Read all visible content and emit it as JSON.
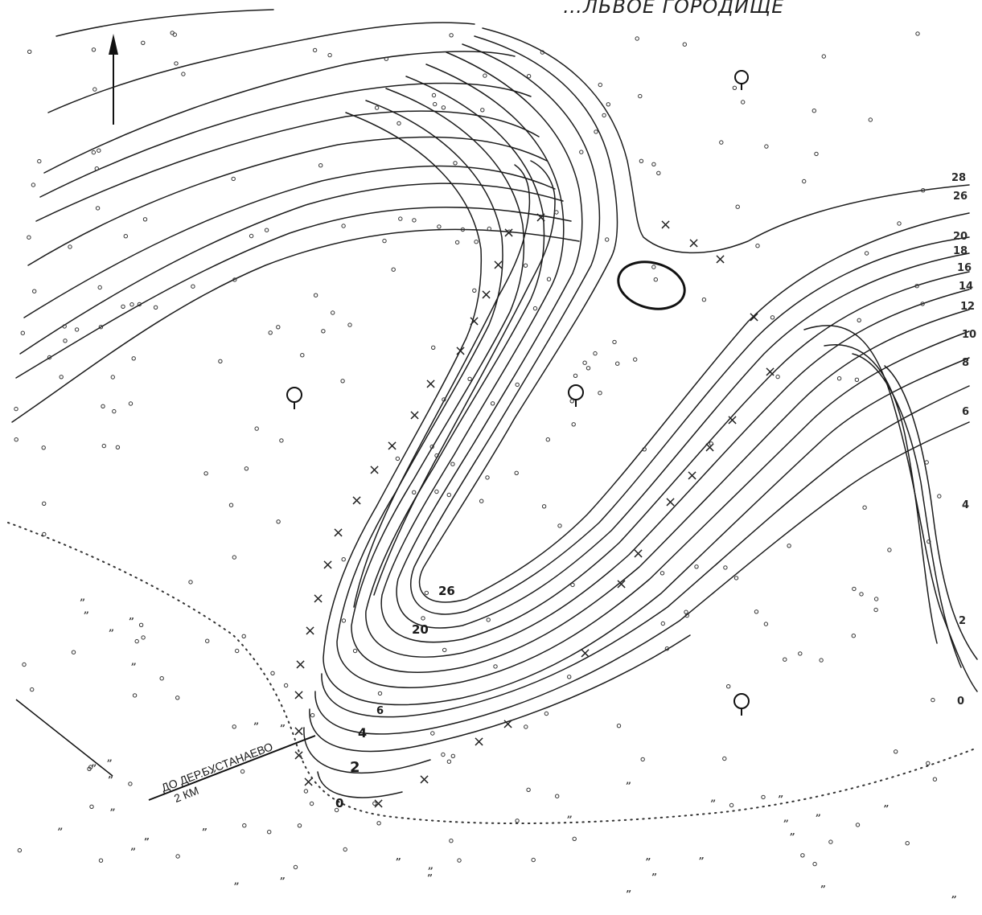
{
  "map": {
    "title": "…ЛЬВОЕ ГОРОДИЩЕ",
    "road_label_line1": "ДО ДЕР.БУСТАНАЕВО",
    "road_label_line2": "2 КМ",
    "contour_labels_east": [
      "28",
      "26",
      "20",
      "18",
      "16",
      "14",
      "12",
      "10",
      "8",
      "6",
      "4",
      "2",
      "0"
    ],
    "contour_labels_spur": [
      "26",
      "20",
      "6",
      "4",
      "2",
      "0"
    ],
    "symbols": [
      "north-arrow-icon",
      "tree-icon",
      "meadow-mark-icon",
      "rampart-x-mark",
      "pit-oval"
    ]
  }
}
